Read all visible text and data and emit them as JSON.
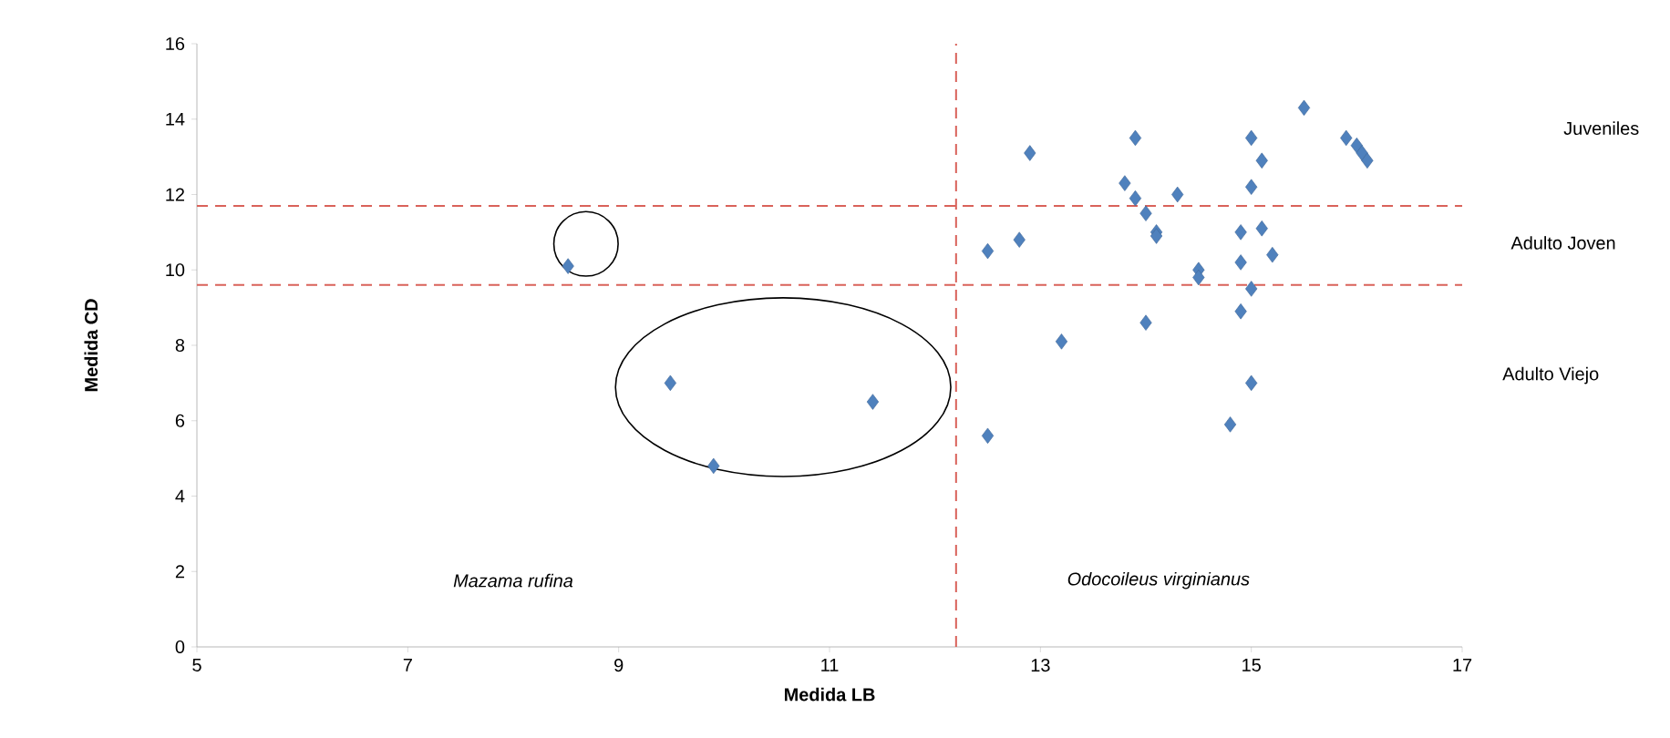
{
  "chart_data": {
    "type": "scatter",
    "xlabel": "Medida LB",
    "ylabel": "Medida CD",
    "color": "#4f81bd",
    "marker": "diamond",
    "grid": false,
    "x": [
      8.52,
      9.49,
      9.9,
      11.41,
      12.5,
      12.5,
      12.8,
      12.9,
      13.2,
      13.8,
      13.9,
      13.9,
      14.0,
      14.1,
      14.1,
      14.0,
      14.3,
      14.5,
      14.5,
      14.9,
      14.9,
      14.9,
      15.0,
      15.0,
      15.0,
      15.0,
      15.1,
      15.1,
      15.2,
      14.8,
      15.5,
      15.9,
      16.0,
      16.05,
      16.1
    ],
    "values": [
      10.1,
      7.0,
      4.8,
      6.5,
      5.6,
      10.5,
      10.8,
      13.1,
      8.1,
      12.3,
      13.5,
      11.9,
      11.5,
      11.0,
      10.9,
      8.6,
      12.0,
      10.0,
      9.8,
      11.0,
      10.2,
      8.9,
      13.5,
      12.2,
      9.5,
      7.0,
      12.9,
      11.1,
      10.4,
      5.9,
      14.3,
      13.5,
      13.3,
      13.1,
      12.9
    ],
    "xlim": [
      5,
      17
    ],
    "ylim": [
      0,
      16
    ],
    "xticks": [
      5,
      7,
      9,
      11,
      13,
      15,
      17
    ],
    "yticks": [
      0,
      2,
      4,
      6,
      8,
      10,
      12,
      14,
      16
    ],
    "ref_lines": [
      {
        "axis": "y",
        "value": 11.7,
        "color": "#d9625a",
        "line_style": "dashed"
      },
      {
        "axis": "y",
        "value": 9.6,
        "color": "#d9625a",
        "line_style": "dashed"
      },
      {
        "axis": "x",
        "value": 12.2,
        "color": "#d9625a",
        "line_style": "dashed"
      }
    ],
    "annotations": [
      "Juveniles",
      "Adulto Joven",
      "Adulto Viejo",
      "Mazama rufina",
      "Odocoileus virginianus"
    ]
  }
}
